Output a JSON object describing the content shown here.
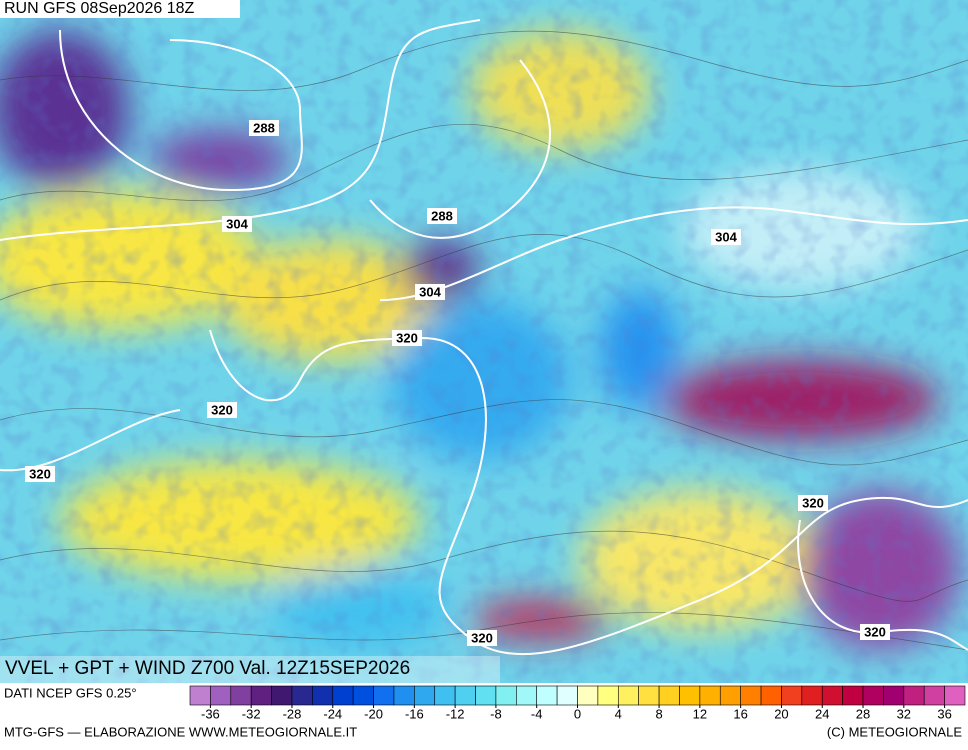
{
  "header": {
    "run": "RUN GFS 08Sep2026 18Z"
  },
  "map": {
    "title": "VVEL + GPT + WIND Z700 Val. 12Z15SEP2026",
    "contour_labels": [
      288,
      304,
      288,
      304,
      320,
      304,
      320,
      320,
      320,
      320,
      320
    ]
  },
  "colorbar": {
    "source": "DATI NCEP GFS 0.25°",
    "lim": [
      -38,
      38
    ],
    "ticks": [
      -36,
      -32,
      -28,
      -24,
      -20,
      -16,
      -12,
      -8,
      -4,
      0,
      4,
      8,
      12,
      16,
      20,
      24,
      28,
      32,
      36
    ],
    "colors": [
      "#c080d0",
      "#a060c0",
      "#8040a0",
      "#602080",
      "#401870",
      "#282890",
      "#1030b0",
      "#0040d0",
      "#0050e0",
      "#1070f0",
      "#2090f0",
      "#30a8f0",
      "#40c0f0",
      "#50d0f0",
      "#60e0f0",
      "#80f0f0",
      "#a0f8f8",
      "#c0ffff",
      "#e0ffff",
      "#ffffc0",
      "#ffff80",
      "#fff060",
      "#ffe040",
      "#ffd020",
      "#ffc000",
      "#ffb000",
      "#ffa000",
      "#ff8000",
      "#ff6000",
      "#f04020",
      "#e02020",
      "#d01030",
      "#c00040",
      "#b00060",
      "#a00070",
      "#c02080",
      "#d040a0",
      "#e060c0"
    ]
  },
  "footer": {
    "left": "MTG-GFS — ELABORAZIONE WWW.METEOGIORNALE.IT",
    "right": "(C) METEOGIORNALE"
  }
}
